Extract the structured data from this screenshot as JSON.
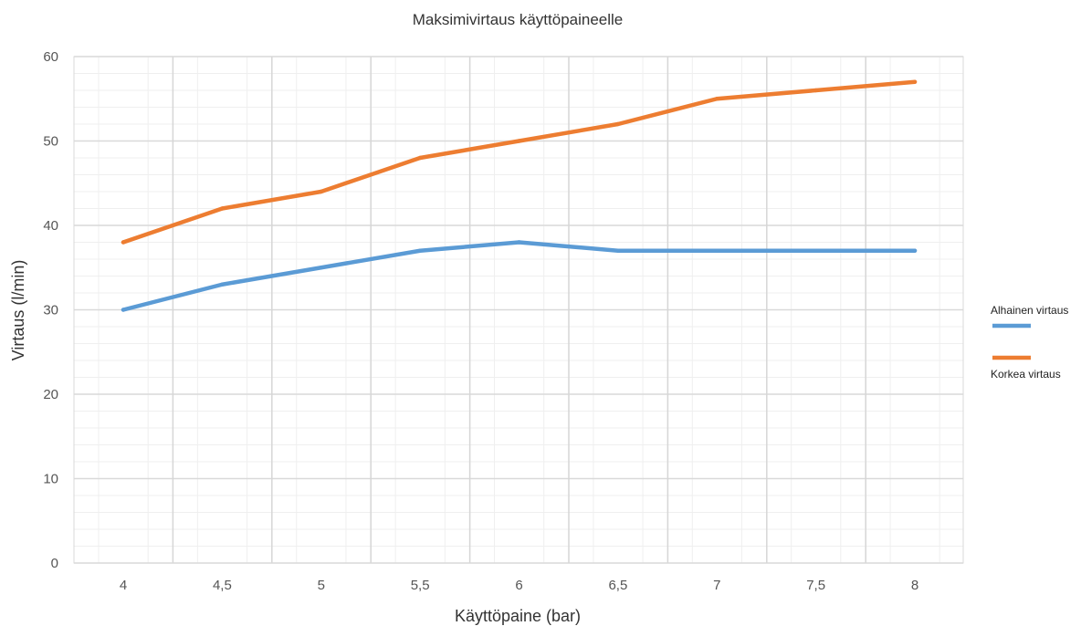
{
  "chart_data": {
    "type": "line",
    "title": "Maksimivirtaus käyttöpaineelle",
    "xlabel": "Käyttöpaine (bar)",
    "ylabel": "Virtaus (l/min)",
    "categories": [
      "4",
      "4,5",
      "5",
      "5,5",
      "6",
      "6,5",
      "7",
      "7,5",
      "8"
    ],
    "ylim": [
      0,
      60
    ],
    "yticks": [
      "0",
      "10",
      "20",
      "30",
      "40",
      "50",
      "60"
    ],
    "grid": true,
    "legend_position": "right",
    "series": [
      {
        "name": "Alhainen virtaus",
        "color": "#5b9bd5",
        "values": [
          30,
          33,
          35,
          37,
          38,
          37,
          37,
          37,
          37
        ]
      },
      {
        "name": "Korkea virtaus",
        "color": "#ed7d31",
        "values": [
          38,
          42,
          44,
          48,
          50,
          52,
          55,
          56,
          57
        ]
      }
    ]
  }
}
